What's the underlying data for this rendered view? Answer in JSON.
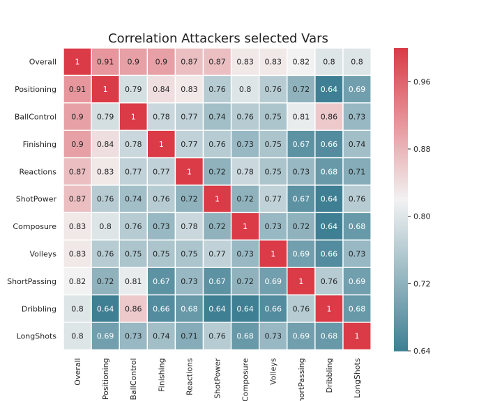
{
  "chart_data": {
    "type": "heatmap",
    "title": "Correlation Attackers selected Vars",
    "xlabel": "",
    "ylabel": "",
    "labels": [
      "Overall",
      "Positioning",
      "BallControl",
      "Finishing",
      "Reactions",
      "ShotPower",
      "Composure",
      "Volleys",
      "ShortPassing",
      "Dribbling",
      "LongShots"
    ],
    "matrix": [
      [
        1,
        0.91,
        0.9,
        0.9,
        0.87,
        0.87,
        0.83,
        0.83,
        0.82,
        0.8,
        0.8
      ],
      [
        0.91,
        1,
        0.79,
        0.84,
        0.83,
        0.76,
        0.8,
        0.76,
        0.72,
        0.64,
        0.69
      ],
      [
        0.9,
        0.79,
        1,
        0.78,
        0.77,
        0.74,
        0.76,
        0.75,
        0.81,
        0.86,
        0.73
      ],
      [
        0.9,
        0.84,
        0.78,
        1,
        0.77,
        0.76,
        0.73,
        0.75,
        0.67,
        0.66,
        0.74
      ],
      [
        0.87,
        0.83,
        0.77,
        0.77,
        1,
        0.72,
        0.78,
        0.75,
        0.73,
        0.68,
        0.71
      ],
      [
        0.87,
        0.76,
        0.74,
        0.76,
        0.72,
        1,
        0.72,
        0.77,
        0.67,
        0.64,
        0.76
      ],
      [
        0.83,
        0.8,
        0.76,
        0.73,
        0.78,
        0.72,
        1,
        0.73,
        0.72,
        0.64,
        0.68
      ],
      [
        0.83,
        0.76,
        0.75,
        0.75,
        0.75,
        0.77,
        0.73,
        1,
        0.69,
        0.66,
        0.73
      ],
      [
        0.82,
        0.72,
        0.81,
        0.67,
        0.73,
        0.67,
        0.72,
        0.69,
        1,
        0.76,
        0.69
      ],
      [
        0.8,
        0.64,
        0.86,
        0.66,
        0.68,
        0.64,
        0.64,
        0.66,
        0.76,
        1,
        0.68
      ],
      [
        0.8,
        0.69,
        0.73,
        0.74,
        0.71,
        0.76,
        0.68,
        0.73,
        0.69,
        0.68,
        1
      ]
    ],
    "colorbar": {
      "range": [
        0.64,
        1.0
      ],
      "ticks": [
        0.64,
        0.72,
        0.8,
        0.88,
        0.96
      ]
    },
    "colors": {
      "low": "#3f7f93",
      "mid": "#f2f2f2",
      "high": "#da3b46"
    },
    "grid": false,
    "legend": "colorbar-right"
  }
}
